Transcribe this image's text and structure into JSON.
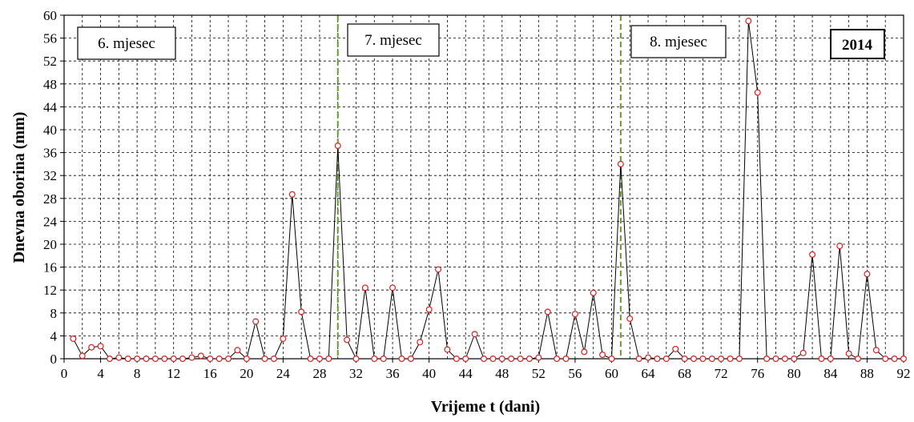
{
  "chart_data": {
    "type": "line",
    "xlabel": "Vrijeme t (dani)",
    "ylabel": "Dnevna oborina (mm)",
    "xlim": [
      0,
      92
    ],
    "ylim": [
      0,
      60
    ],
    "x_ticks": [
      0,
      4,
      8,
      12,
      16,
      20,
      24,
      28,
      32,
      36,
      40,
      44,
      48,
      52,
      56,
      60,
      64,
      68,
      72,
      76,
      80,
      84,
      88,
      92
    ],
    "y_ticks": [
      0,
      4,
      8,
      12,
      16,
      20,
      24,
      28,
      32,
      36,
      40,
      44,
      48,
      52,
      56,
      60
    ],
    "x_tick_labels": [
      "0",
      "4",
      "8",
      "12",
      "16",
      "20",
      "24",
      "28",
      "32",
      "36",
      "40",
      "44",
      "48",
      "52",
      "56",
      "60",
      "64",
      "68",
      "72",
      "76",
      "80",
      "84",
      "88",
      "92"
    ],
    "y_tick_labels": [
      "0",
      "4",
      "8",
      "12",
      "16",
      "20",
      "24",
      "28",
      "32",
      "36",
      "40",
      "44",
      "48",
      "52",
      "56",
      "60"
    ],
    "grid": true,
    "line_color": "#000000",
    "marker_edge_color": "#d92020",
    "marker_fill_color": "#ffffff",
    "divider_color": "#6a9a30",
    "month_dividers": [
      30,
      61
    ],
    "annotations": {
      "month_labels": [
        "6. mjesec",
        "7. mjesec",
        "8. mjesec"
      ],
      "year_label": "2014"
    },
    "series": [
      {
        "x": [
          1,
          2,
          3,
          4,
          5,
          6,
          7,
          8,
          9,
          10,
          11,
          12,
          13,
          14,
          15,
          16,
          17,
          18,
          19,
          20,
          21,
          22,
          23,
          24,
          25,
          26,
          27,
          28,
          29,
          30,
          31,
          32,
          33,
          34,
          35,
          36,
          37,
          38,
          39,
          40,
          41,
          42,
          43,
          44,
          45,
          46,
          47,
          48,
          49,
          50,
          51,
          52,
          53,
          54,
          55,
          56,
          57,
          58,
          59,
          60,
          61,
          62,
          63,
          64,
          65,
          66,
          67,
          68,
          69,
          70,
          71,
          72,
          73,
          74,
          75,
          76,
          77,
          78,
          79,
          80,
          81,
          82,
          83,
          84,
          85,
          86,
          87,
          88,
          89,
          90,
          91,
          92
        ],
        "values": [
          3.5,
          0.5,
          2,
          2.2,
          0,
          0.2,
          0,
          0,
          0,
          0,
          0,
          0,
          0,
          0.2,
          0.5,
          0,
          0,
          0,
          1.5,
          0,
          6.5,
          0,
          0,
          3.5,
          28.7,
          8.2,
          0,
          0,
          0,
          37.2,
          3.3,
          0,
          12.4,
          0,
          0,
          12.4,
          0,
          0,
          2.9,
          8.6,
          15.6,
          1.6,
          0,
          0,
          4.3,
          0,
          0,
          0,
          0,
          0,
          0,
          0.2,
          8.2,
          0,
          0,
          7.8,
          1.2,
          11.5,
          0.7,
          0,
          34,
          7,
          0,
          0.2,
          0,
          0,
          1.7,
          0,
          0,
          0,
          0,
          0,
          0,
          0,
          59,
          46.5,
          0,
          0,
          0,
          0,
          1,
          18.2,
          0,
          0,
          19.7,
          0.9,
          0,
          14.8,
          1.5,
          0,
          0,
          0
        ]
      }
    ]
  }
}
